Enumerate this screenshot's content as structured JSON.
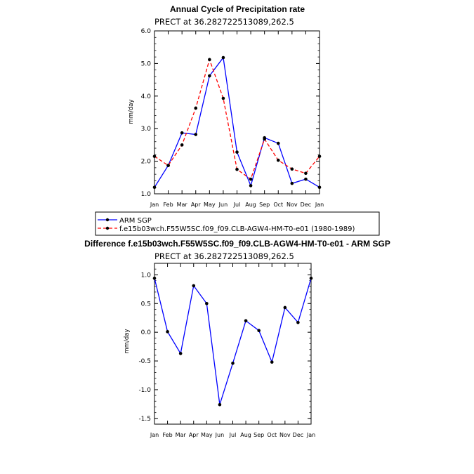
{
  "chart_data": [
    {
      "type": "line",
      "title": "Annual Cycle of Precipitation rate",
      "subtitle": "PRECT at  36.282722513089,262.5",
      "xlabel": "",
      "ylabel": "mm/day",
      "categories": [
        "Jan",
        "Feb",
        "Mar",
        "Apr",
        "May",
        "Jun",
        "Jul",
        "Aug",
        "Sep",
        "Oct",
        "Nov",
        "Dec",
        "Jan"
      ],
      "ylim": [
        1.0,
        6.0
      ],
      "yticks": [
        "1.0",
        "2.0",
        "3.0",
        "4.0",
        "5.0",
        "6.0"
      ],
      "series": [
        {
          "name": "ARM SGP",
          "color": "#0000ff",
          "dash": "solid",
          "values": [
            1.2,
            1.87,
            2.87,
            2.82,
            4.62,
            5.18,
            2.28,
            1.25,
            2.72,
            2.55,
            1.32,
            1.45,
            1.2
          ]
        },
        {
          "name": "f.e15b03wch.F55W5SC.f09_f09.CLB-AGW4-HM-T0-e01 (1980-1989)",
          "color": "#ff0000",
          "dash": "dashed",
          "values": [
            2.15,
            1.87,
            2.5,
            3.63,
            5.12,
            3.93,
            1.75,
            1.45,
            2.68,
            2.03,
            1.76,
            1.63,
            2.15
          ]
        }
      ]
    },
    {
      "type": "line",
      "title": "Difference f.e15b03wch.F55W5SC.f09_f09.CLB-AGW4-HM-T0-e01 - ARM SGP",
      "subtitle": "PRECT at  36.282722513089,262.5",
      "xlabel": "",
      "ylabel": "mm/day",
      "categories": [
        "Jan",
        "Feb",
        "Mar",
        "Apr",
        "May",
        "Jun",
        "Jul",
        "Aug",
        "Sep",
        "Oct",
        "Nov",
        "Dec",
        "Jan"
      ],
      "ylim": [
        -1.6,
        1.2
      ],
      "yticks": [
        "-1.5",
        "-1.0",
        "-0.5",
        "0.0",
        "0.5",
        "1.0"
      ],
      "series": [
        {
          "name": "Difference",
          "color": "#0000ff",
          "dash": "solid",
          "values": [
            0.94,
            0.01,
            -0.37,
            0.81,
            0.5,
            -1.26,
            -0.54,
            0.2,
            0.03,
            -0.52,
            0.43,
            0.17,
            0.94
          ]
        }
      ]
    }
  ],
  "legend": {
    "items": [
      "ARM SGP",
      "f.e15b03wch.F55W5SC.f09_f09.CLB-AGW4-HM-T0-e01 (1980-1989)"
    ]
  }
}
